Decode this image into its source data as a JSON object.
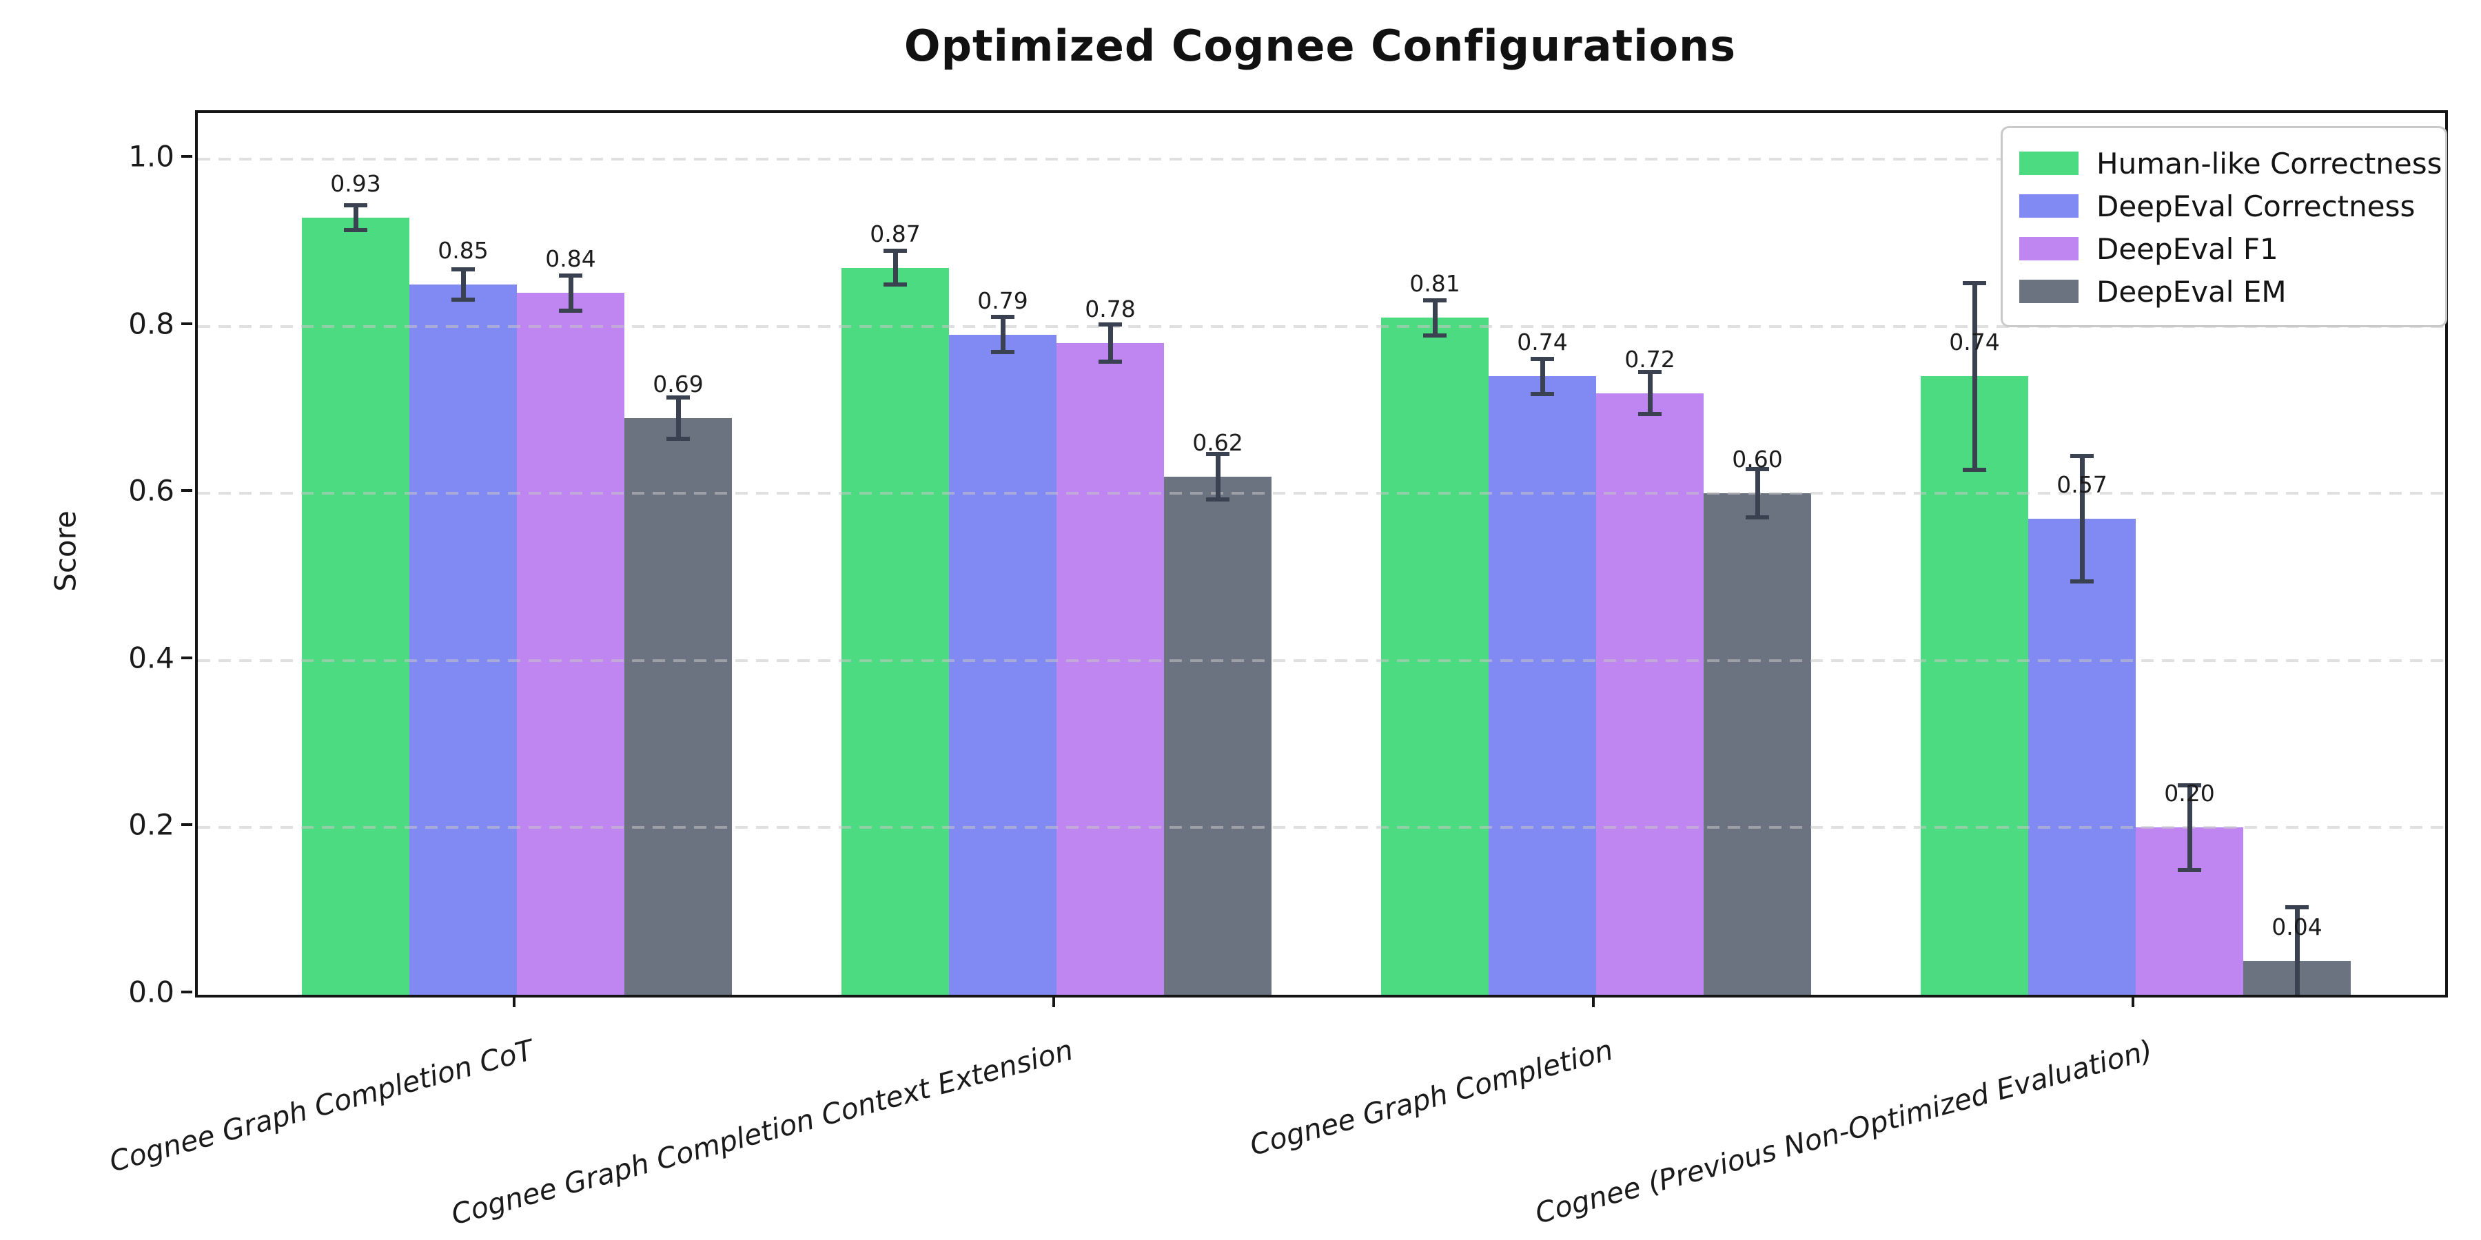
{
  "title": "Optimized Cognee Configurations",
  "chart_data": {
    "type": "bar",
    "title": "Optimized Cognee Configurations",
    "xlabel": "",
    "ylabel": "Score",
    "ylim": [
      0,
      1.055
    ],
    "yticks": [
      "0.0",
      "0.2",
      "0.4",
      "0.6",
      "0.8",
      "1.0"
    ],
    "grid": "horizontal dashed",
    "legend_position": "upper right",
    "categories": [
      "Cognee Graph Completion CoT",
      "Cognee Graph Completion Context Extension",
      "Cognee Graph Completion",
      "Cognee (Previous Non-Optimized Evaluation)"
    ],
    "series": [
      {
        "name": "Human-like Correctness",
        "color": "#4ddb81",
        "values": [
          0.93,
          0.87,
          0.81,
          0.74
        ],
        "errors": [
          0.015,
          0.02,
          0.021,
          0.112
        ]
      },
      {
        "name": "DeepEval Correctness",
        "color": "#8189f3",
        "values": [
          0.85,
          0.79,
          0.74,
          0.57
        ],
        "errors": [
          0.018,
          0.021,
          0.021,
          0.075
        ]
      },
      {
        "name": "DeepEval F1",
        "color": "#bf86f2",
        "values": [
          0.84,
          0.78,
          0.72,
          0.2
        ],
        "errors": [
          0.021,
          0.022,
          0.025,
          0.051
        ]
      },
      {
        "name": "DeepEval EM",
        "color": "#6b7280",
        "values": [
          0.69,
          0.62,
          0.6,
          0.04
        ],
        "errors": [
          0.025,
          0.027,
          0.029,
          0.065
        ]
      }
    ],
    "error_bar_color": "#3a4252",
    "value_label_format": "2-decimals"
  }
}
